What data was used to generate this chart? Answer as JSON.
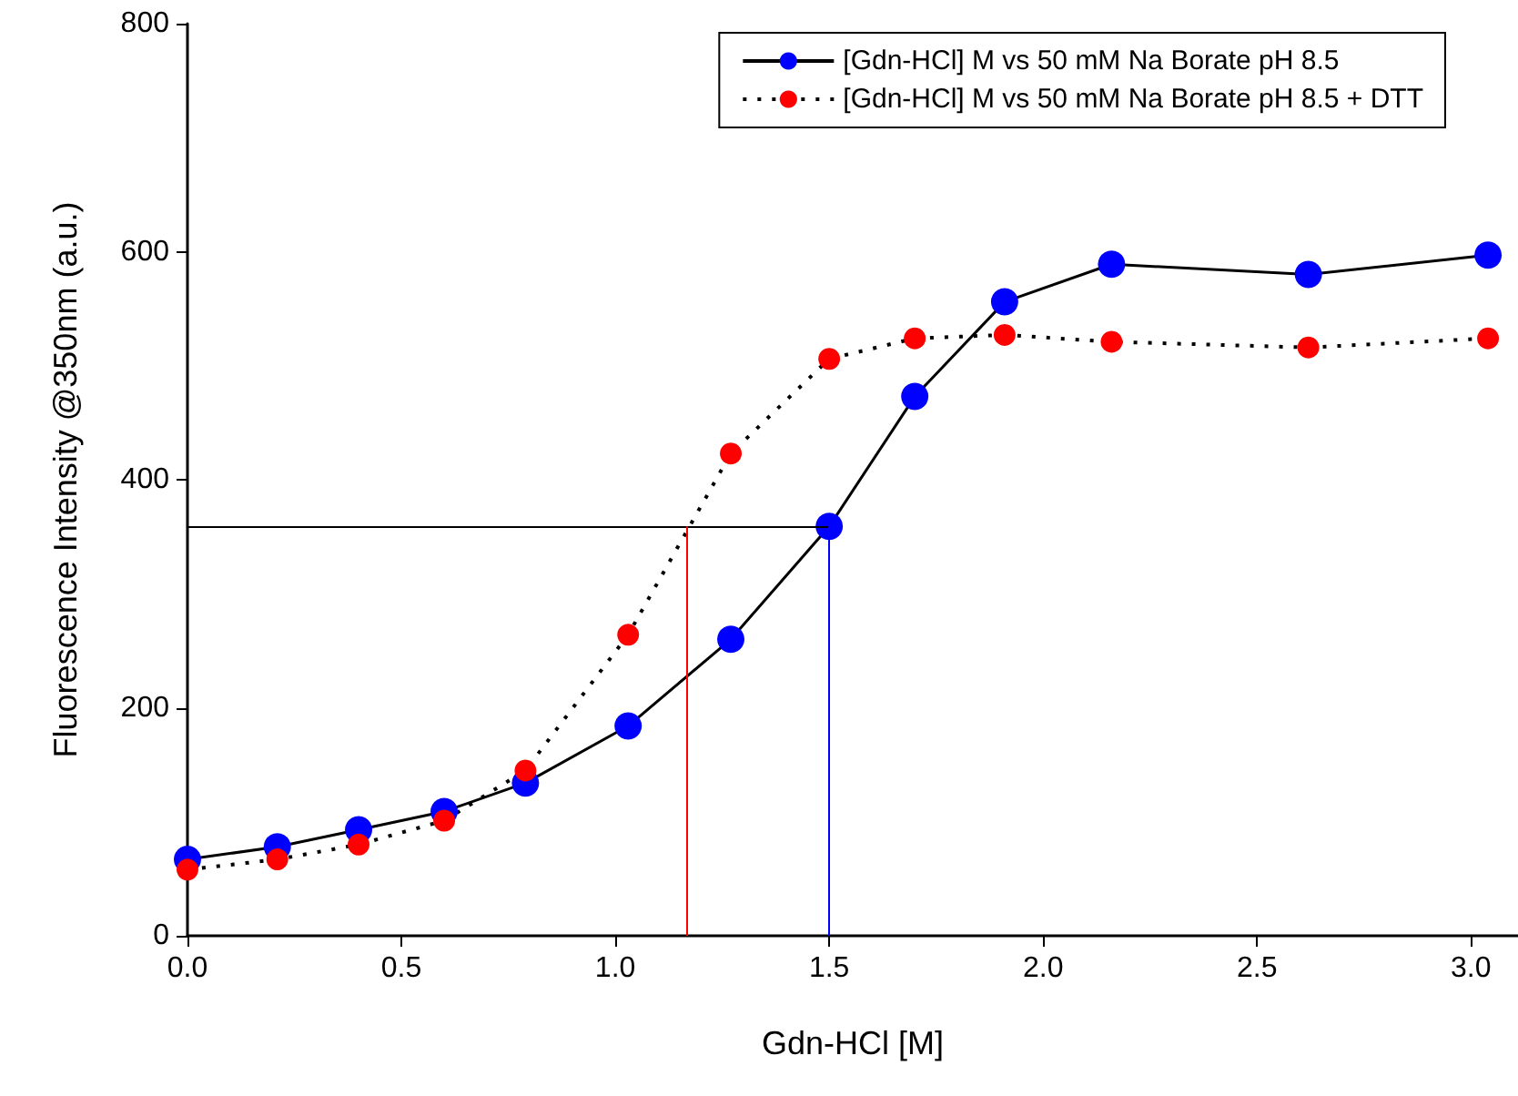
{
  "chart_data": {
    "type": "line",
    "xlabel": "Gdn-HCl [M]",
    "ylabel": "Fluorescence Intensity @350nm (a.u.)",
    "xlim": [
      0,
      3.11
    ],
    "ylim": [
      0,
      800
    ],
    "xticks": [
      {
        "value": 0,
        "label": "0.0"
      },
      0.5,
      {
        "value": 1,
        "label": "1.0"
      },
      1.5,
      {
        "value": 2,
        "label": "2.0"
      },
      2.5,
      {
        "value": 3,
        "label": "3.0"
      }
    ],
    "yticks": [
      0,
      200,
      400,
      600,
      800
    ],
    "grid": false,
    "legend": "top right",
    "marker": "circle",
    "series": [
      {
        "name": "[Gdn-HCl] M vs 50 mM Na Borate pH 8.5",
        "color": "#0000ff",
        "line_style": "solid",
        "x": [
          0,
          0.21,
          0.4,
          0.6,
          0.79,
          1.03,
          1.27,
          1.5,
          1.7,
          1.91,
          2.16,
          2.62,
          3.04
        ],
        "values": [
          67,
          78,
          93,
          109,
          134,
          184,
          260,
          359,
          473,
          556,
          589,
          580,
          597
        ]
      },
      {
        "name": "[Gdn-HCl] M vs 50 mM Na Borate pH 8.5 + DTT",
        "color": "#ff0000",
        "line_style": "dotted",
        "x": [
          0,
          0.21,
          0.4,
          0.6,
          0.79,
          1.03,
          1.27,
          1.5,
          1.7,
          1.91,
          2.16,
          2.62,
          3.04
        ],
        "values": [
          58,
          67,
          80,
          101,
          145,
          264,
          423,
          506,
          524,
          527,
          521,
          516,
          524
        ]
      }
    ],
    "ref_lines": [
      {
        "axis": "y",
        "value": 359,
        "color": "#000000"
      },
      {
        "axis": "x",
        "value": 1.5,
        "color": "#0000ff"
      },
      {
        "axis": "x",
        "value": 1.166,
        "color": "#ff0000"
      }
    ]
  }
}
